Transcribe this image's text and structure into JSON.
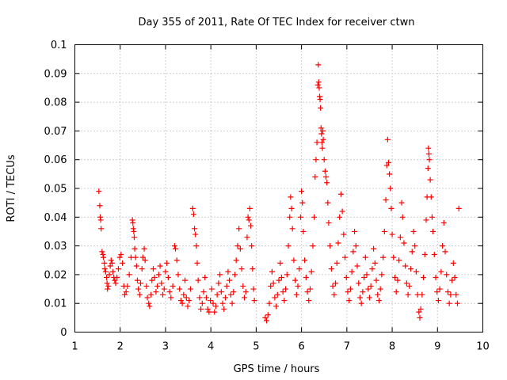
{
  "chart_data": {
    "type": "scatter",
    "title": "Day 355 of 2011, Rate Of TEC Index for receiver ctwn",
    "xlabel": "GPS time / hours",
    "ylabel": "ROTI / TECUs",
    "xlim": [
      1,
      10
    ],
    "ylim": [
      0,
      0.1
    ],
    "x_ticks": [
      "1",
      "2",
      "3",
      "4",
      "5",
      "6",
      "7",
      "8",
      "9",
      "10"
    ],
    "y_ticks": [
      "0",
      "0.01",
      "0.02",
      "0.03",
      "0.04",
      "0.05",
      "0.06",
      "0.07",
      "0.08",
      "0.09",
      "0.1"
    ],
    "marker": "+",
    "grid": true,
    "series": [
      {
        "name": "ROTI",
        "color": "#ff0000",
        "points": [
          [
            1.53,
            0.049
          ],
          [
            1.55,
            0.044
          ],
          [
            1.56,
            0.04
          ],
          [
            1.57,
            0.039
          ],
          [
            1.58,
            0.036
          ],
          [
            1.6,
            0.028
          ],
          [
            1.62,
            0.027
          ],
          [
            1.63,
            0.026
          ],
          [
            1.65,
            0.024
          ],
          [
            1.66,
            0.022
          ],
          [
            1.68,
            0.021
          ],
          [
            1.7,
            0.019
          ],
          [
            1.71,
            0.017
          ],
          [
            1.72,
            0.015
          ],
          [
            1.74,
            0.016
          ],
          [
            1.76,
            0.02
          ],
          [
            1.78,
            0.023
          ],
          [
            1.8,
            0.025
          ],
          [
            1.82,
            0.024
          ],
          [
            1.84,
            0.021
          ],
          [
            1.86,
            0.019
          ],
          [
            1.88,
            0.018
          ],
          [
            1.9,
            0.017
          ],
          [
            1.93,
            0.019
          ],
          [
            1.96,
            0.022
          ],
          [
            1.99,
            0.026
          ],
          [
            2.02,
            0.027
          ],
          [
            2.05,
            0.024
          ],
          [
            2.08,
            0.016
          ],
          [
            2.1,
            0.013
          ],
          [
            2.13,
            0.014
          ],
          [
            2.16,
            0.016
          ],
          [
            2.2,
            0.02
          ],
          [
            2.24,
            0.026
          ],
          [
            2.27,
            0.039
          ],
          [
            2.28,
            0.038
          ],
          [
            2.29,
            0.036
          ],
          [
            2.3,
            0.035
          ],
          [
            2.31,
            0.033
          ],
          [
            2.32,
            0.029
          ],
          [
            2.34,
            0.026
          ],
          [
            2.36,
            0.023
          ],
          [
            2.38,
            0.018
          ],
          [
            2.4,
            0.015
          ],
          [
            2.43,
            0.013
          ],
          [
            2.45,
            0.017
          ],
          [
            2.48,
            0.022
          ],
          [
            2.5,
            0.026
          ],
          [
            2.53,
            0.029
          ],
          [
            2.55,
            0.025
          ],
          [
            2.58,
            0.016
          ],
          [
            2.6,
            0.012
          ],
          [
            2.63,
            0.01
          ],
          [
            2.65,
            0.009
          ],
          [
            2.68,
            0.013
          ],
          [
            2.7,
            0.018
          ],
          [
            2.73,
            0.022
          ],
          [
            2.76,
            0.019
          ],
          [
            2.79,
            0.014
          ],
          [
            2.82,
            0.016
          ],
          [
            2.85,
            0.02
          ],
          [
            2.88,
            0.023
          ],
          [
            2.91,
            0.017
          ],
          [
            2.94,
            0.013
          ],
          [
            2.97,
            0.015
          ],
          [
            3.0,
            0.021
          ],
          [
            3.03,
            0.024
          ],
          [
            3.06,
            0.019
          ],
          [
            3.09,
            0.014
          ],
          [
            3.12,
            0.012
          ],
          [
            3.16,
            0.016
          ],
          [
            3.2,
            0.03
          ],
          [
            3.22,
            0.029
          ],
          [
            3.25,
            0.025
          ],
          [
            3.28,
            0.02
          ],
          [
            3.31,
            0.015
          ],
          [
            3.34,
            0.011
          ],
          [
            3.37,
            0.01
          ],
          [
            3.4,
            0.013
          ],
          [
            3.43,
            0.018
          ],
          [
            3.46,
            0.012
          ],
          [
            3.49,
            0.009
          ],
          [
            3.52,
            0.011
          ],
          [
            3.55,
            0.015
          ],
          [
            3.6,
            0.043
          ],
          [
            3.62,
            0.041
          ],
          [
            3.64,
            0.036
          ],
          [
            3.66,
            0.034
          ],
          [
            3.68,
            0.03
          ],
          [
            3.7,
            0.024
          ],
          [
            3.72,
            0.018
          ],
          [
            3.75,
            0.012
          ],
          [
            3.78,
            0.008
          ],
          [
            3.81,
            0.01
          ],
          [
            3.84,
            0.014
          ],
          [
            3.87,
            0.019
          ],
          [
            3.9,
            0.012
          ],
          [
            3.93,
            0.008
          ],
          [
            3.96,
            0.007
          ],
          [
            3.99,
            0.011
          ],
          [
            4.02,
            0.015
          ],
          [
            4.05,
            0.01
          ],
          [
            4.08,
            0.007
          ],
          [
            4.11,
            0.009
          ],
          [
            4.14,
            0.013
          ],
          [
            4.17,
            0.017
          ],
          [
            4.2,
            0.02
          ],
          [
            4.23,
            0.014
          ],
          [
            4.26,
            0.01
          ],
          [
            4.29,
            0.008
          ],
          [
            4.32,
            0.012
          ],
          [
            4.35,
            0.016
          ],
          [
            4.38,
            0.021
          ],
          [
            4.41,
            0.018
          ],
          [
            4.44,
            0.013
          ],
          [
            4.47,
            0.01
          ],
          [
            4.5,
            0.014
          ],
          [
            4.53,
            0.02
          ],
          [
            4.56,
            0.025
          ],
          [
            4.59,
            0.03
          ],
          [
            4.62,
            0.036
          ],
          [
            4.65,
            0.029
          ],
          [
            4.68,
            0.022
          ],
          [
            4.71,
            0.016
          ],
          [
            4.74,
            0.012
          ],
          [
            4.77,
            0.014
          ],
          [
            4.8,
            0.033
          ],
          [
            4.82,
            0.04
          ],
          [
            4.84,
            0.039
          ],
          [
            4.86,
            0.043
          ],
          [
            4.88,
            0.037
          ],
          [
            4.9,
            0.03
          ],
          [
            4.92,
            0.022
          ],
          [
            4.94,
            0.015
          ],
          [
            4.96,
            0.011
          ],
          [
            5.2,
            0.005
          ],
          [
            5.23,
            0.004
          ],
          [
            5.26,
            0.006
          ],
          [
            5.29,
            0.01
          ],
          [
            5.32,
            0.016
          ],
          [
            5.35,
            0.021
          ],
          [
            5.38,
            0.017
          ],
          [
            5.41,
            0.012
          ],
          [
            5.44,
            0.009
          ],
          [
            5.47,
            0.013
          ],
          [
            5.5,
            0.018
          ],
          [
            5.53,
            0.024
          ],
          [
            5.56,
            0.019
          ],
          [
            5.59,
            0.014
          ],
          [
            5.62,
            0.011
          ],
          [
            5.65,
            0.015
          ],
          [
            5.68,
            0.02
          ],
          [
            5.71,
            0.03
          ],
          [
            5.74,
            0.04
          ],
          [
            5.76,
            0.047
          ],
          [
            5.78,
            0.043
          ],
          [
            5.8,
            0.036
          ],
          [
            5.83,
            0.025
          ],
          [
            5.86,
            0.018
          ],
          [
            5.89,
            0.013
          ],
          [
            5.92,
            0.016
          ],
          [
            5.95,
            0.022
          ],
          [
            5.98,
            0.04
          ],
          [
            6.0,
            0.049
          ],
          [
            6.02,
            0.045
          ],
          [
            6.04,
            0.035
          ],
          [
            6.07,
            0.025
          ],
          [
            6.1,
            0.019
          ],
          [
            6.13,
            0.014
          ],
          [
            6.16,
            0.011
          ],
          [
            6.19,
            0.015
          ],
          [
            6.22,
            0.021
          ],
          [
            6.25,
            0.03
          ],
          [
            6.28,
            0.04
          ],
          [
            6.3,
            0.054
          ],
          [
            6.32,
            0.06
          ],
          [
            6.34,
            0.066
          ],
          [
            6.36,
            0.086
          ],
          [
            6.37,
            0.093
          ],
          [
            6.38,
            0.087
          ],
          [
            6.39,
            0.085
          ],
          [
            6.4,
            0.082
          ],
          [
            6.41,
            0.081
          ],
          [
            6.42,
            0.078
          ],
          [
            6.43,
            0.071
          ],
          [
            6.44,
            0.069
          ],
          [
            6.45,
            0.066
          ],
          [
            6.46,
            0.064
          ],
          [
            6.47,
            0.07
          ],
          [
            6.48,
            0.067
          ],
          [
            6.5,
            0.06
          ],
          [
            6.52,
            0.056
          ],
          [
            6.54,
            0.054
          ],
          [
            6.56,
            0.052
          ],
          [
            6.58,
            0.045
          ],
          [
            6.6,
            0.038
          ],
          [
            6.63,
            0.03
          ],
          [
            6.66,
            0.022
          ],
          [
            6.69,
            0.016
          ],
          [
            6.72,
            0.013
          ],
          [
            6.75,
            0.017
          ],
          [
            6.78,
            0.024
          ],
          [
            6.81,
            0.031
          ],
          [
            6.84,
            0.04
          ],
          [
            6.87,
            0.048
          ],
          [
            6.9,
            0.042
          ],
          [
            6.93,
            0.034
          ],
          [
            6.96,
            0.026
          ],
          [
            6.99,
            0.019
          ],
          [
            7.02,
            0.014
          ],
          [
            7.05,
            0.011
          ],
          [
            7.08,
            0.015
          ],
          [
            7.11,
            0.021
          ],
          [
            7.14,
            0.028
          ],
          [
            7.17,
            0.035
          ],
          [
            7.2,
            0.03
          ],
          [
            7.23,
            0.023
          ],
          [
            7.26,
            0.017
          ],
          [
            7.29,
            0.012
          ],
          [
            7.32,
            0.01
          ],
          [
            7.35,
            0.014
          ],
          [
            7.38,
            0.019
          ],
          [
            7.41,
            0.026
          ],
          [
            7.44,
            0.02
          ],
          [
            7.47,
            0.015
          ],
          [
            7.5,
            0.012
          ],
          [
            7.53,
            0.016
          ],
          [
            7.56,
            0.022
          ],
          [
            7.59,
            0.029
          ],
          [
            7.62,
            0.024
          ],
          [
            7.65,
            0.018
          ],
          [
            7.68,
            0.013
          ],
          [
            7.71,
            0.011
          ],
          [
            7.74,
            0.015
          ],
          [
            7.77,
            0.02
          ],
          [
            7.8,
            0.026
          ],
          [
            7.83,
            0.035
          ],
          [
            7.86,
            0.046
          ],
          [
            7.88,
            0.058
          ],
          [
            7.9,
            0.067
          ],
          [
            7.92,
            0.059
          ],
          [
            7.94,
            0.055
          ],
          [
            7.96,
            0.05
          ],
          [
            7.98,
            0.043
          ],
          [
            8.0,
            0.034
          ],
          [
            8.03,
            0.026
          ],
          [
            8.06,
            0.019
          ],
          [
            8.09,
            0.014
          ],
          [
            8.12,
            0.018
          ],
          [
            8.15,
            0.025
          ],
          [
            8.18,
            0.033
          ],
          [
            8.21,
            0.045
          ],
          [
            8.23,
            0.04
          ],
          [
            8.26,
            0.031
          ],
          [
            8.29,
            0.023
          ],
          [
            8.32,
            0.017
          ],
          [
            8.35,
            0.013
          ],
          [
            8.38,
            0.016
          ],
          [
            8.41,
            0.022
          ],
          [
            8.44,
            0.028
          ],
          [
            8.47,
            0.035
          ],
          [
            8.5,
            0.03
          ],
          [
            8.53,
            0.021
          ],
          [
            8.56,
            0.013
          ],
          [
            8.59,
            0.007
          ],
          [
            8.61,
            0.005
          ],
          [
            8.63,
            0.008
          ],
          [
            8.66,
            0.013
          ],
          [
            8.69,
            0.019
          ],
          [
            8.72,
            0.027
          ],
          [
            8.75,
            0.039
          ],
          [
            8.77,
            0.047
          ],
          [
            8.79,
            0.057
          ],
          [
            8.8,
            0.064
          ],
          [
            8.81,
            0.062
          ],
          [
            8.82,
            0.06
          ],
          [
            8.84,
            0.053
          ],
          [
            8.86,
            0.047
          ],
          [
            8.88,
            0.04
          ],
          [
            8.9,
            0.035
          ],
          [
            8.93,
            0.027
          ],
          [
            8.96,
            0.019
          ],
          [
            8.99,
            0.014
          ],
          [
            9.02,
            0.011
          ],
          [
            9.05,
            0.015
          ],
          [
            9.08,
            0.021
          ],
          [
            9.11,
            0.03
          ],
          [
            9.14,
            0.038
          ],
          [
            9.17,
            0.028
          ],
          [
            9.2,
            0.02
          ],
          [
            9.23,
            0.014
          ],
          [
            9.26,
            0.01
          ],
          [
            9.29,
            0.013
          ],
          [
            9.32,
            0.018
          ],
          [
            9.35,
            0.024
          ],
          [
            9.38,
            0.019
          ],
          [
            9.41,
            0.013
          ],
          [
            9.44,
            0.01
          ],
          [
            9.47,
            0.043
          ]
        ]
      }
    ]
  }
}
